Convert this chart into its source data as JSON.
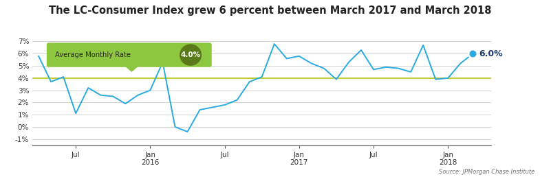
{
  "title": "The LC-Consumer Index grew 6 percent between March 2017 and March 2018",
  "title_fontsize": 10.5,
  "avg_rate": 4.0,
  "avg_label": "Average Monthly Rate",
  "avg_value_label": "4.0%",
  "end_value_label": "6.0%",
  "source_text": "Source: JPMorgan Chase Institute",
  "line_color": "#29ABE2",
  "avg_line_color": "#BFCC35",
  "background_color": "#FFFFFF",
  "grid_color": "#CCCCCC",
  "annotation_bg_color": "#8DC63F",
  "annotation_circle_color": "#5A7A1A",
  "end_circle_color": "#29ABE2",
  "end_label_color": "#1B3A6B",
  "x_labels": [
    "Jul",
    "Jan\n2016",
    "Jul",
    "Jan\n2017",
    "Jul",
    "Jan\n2018"
  ],
  "x_tick_positions": [
    3,
    9,
    15,
    21,
    27,
    33
  ],
  "ylim": [
    -1,
    7
  ],
  "yticks": [
    -1,
    0,
    1,
    2,
    3,
    4,
    5,
    6,
    7
  ],
  "data_x": [
    0,
    1,
    2,
    3,
    4,
    5,
    6,
    7,
    8,
    9,
    10,
    11,
    12,
    13,
    14,
    15,
    16,
    17,
    18,
    19,
    20,
    21,
    22,
    23,
    24,
    25,
    26,
    27,
    28,
    29,
    30,
    31,
    32,
    33,
    34,
    35
  ],
  "data_y": [
    5.8,
    3.7,
    4.1,
    1.1,
    3.2,
    2.6,
    2.5,
    1.9,
    2.6,
    3.0,
    5.3,
    0.0,
    -0.4,
    1.4,
    1.6,
    1.8,
    2.2,
    3.7,
    4.1,
    6.8,
    5.6,
    5.8,
    5.2,
    4.8,
    3.9,
    5.3,
    6.3,
    4.7,
    4.9,
    4.8,
    4.5,
    6.7,
    3.9,
    4.0,
    5.2,
    6.0
  ]
}
